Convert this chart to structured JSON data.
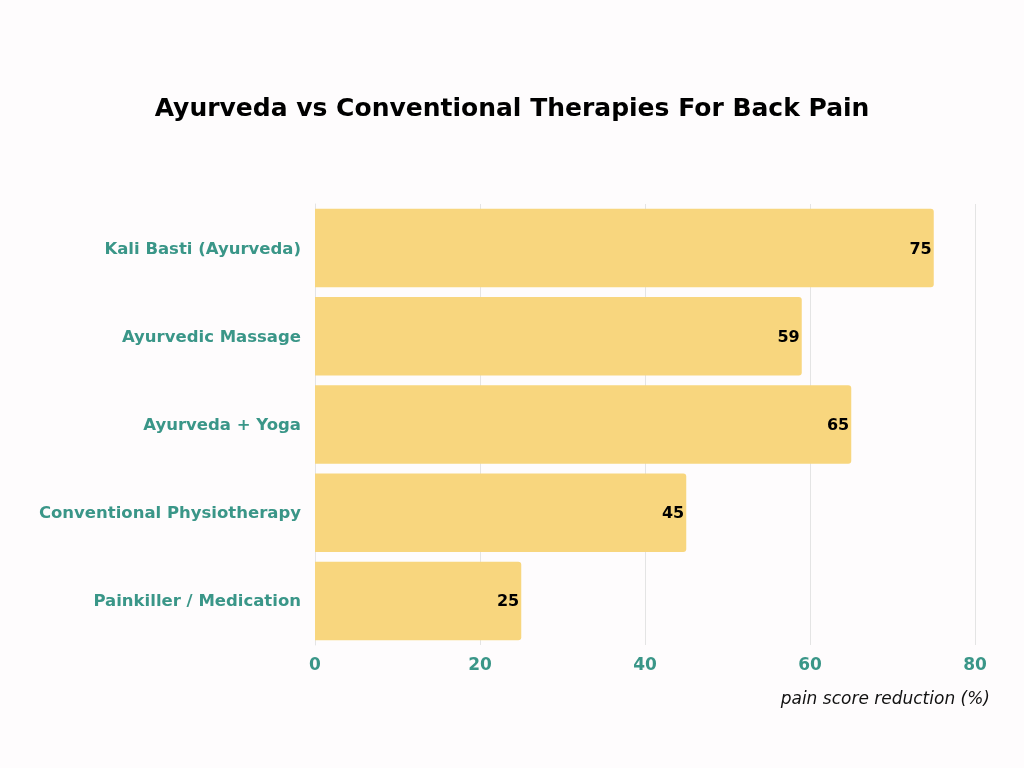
{
  "chart_data": {
    "type": "bar",
    "orientation": "horizontal",
    "title": "Ayurveda vs Conventional Therapies For Back Pain",
    "xlabel": "pain score reduction (%)",
    "categories": [
      "Kali Basti (Ayurveda)",
      "Ayurvedic Massage",
      "Ayurveda + Yoga",
      "Conventional Physiotherapy",
      "Painkiller / Medication"
    ],
    "values": [
      75,
      59,
      65,
      45,
      25
    ],
    "color": "#f8d67e",
    "xlim": [
      0,
      80
    ],
    "xticks": [
      0,
      20,
      40,
      60,
      80
    ],
    "grid": "x",
    "data_labels": true
  }
}
